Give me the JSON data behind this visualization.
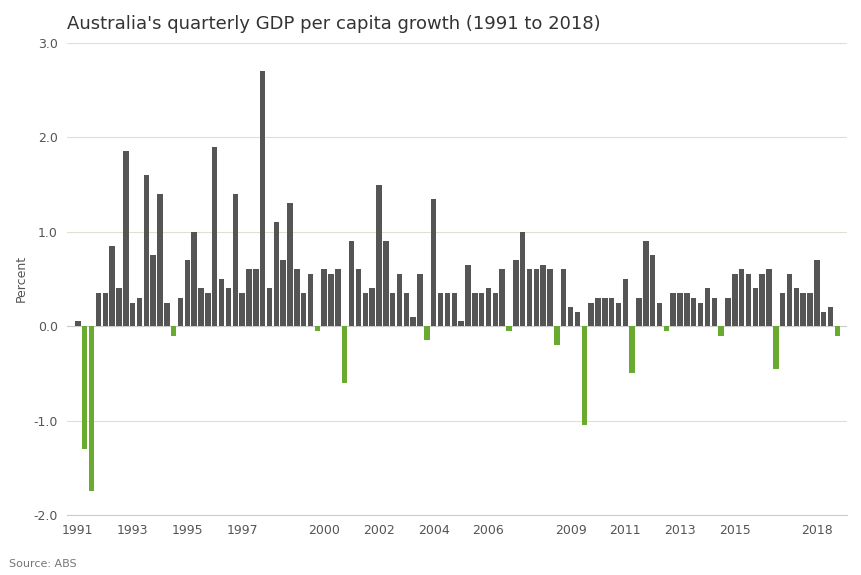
{
  "title": "Australia's quarterly GDP per capita growth (1991 to 2018)",
  "ylabel": "Percent",
  "source": "Source: ABS",
  "background_color": "#ffffff",
  "plot_background": "#ffffff",
  "bar_color_positive": "#555555",
  "bar_color_negative": "#6aaa30",
  "ylim": [
    -2.0,
    3.0
  ],
  "yticks": [
    -2.0,
    -1.0,
    0.0,
    1.0,
    2.0,
    3.0
  ],
  "xtick_labels": [
    "1991",
    "1993",
    "1995",
    "1997",
    "2000",
    "2002",
    "2004",
    "2006",
    "2009",
    "2011",
    "2013",
    "2015",
    "2018"
  ],
  "xtick_years": [
    1991,
    1993,
    1995,
    1997,
    2000,
    2002,
    2004,
    2006,
    2009,
    2011,
    2013,
    2015,
    2018
  ],
  "start_year": 1991,
  "values": [
    0.05,
    -1.3,
    -1.75,
    0.35,
    0.35,
    0.85,
    0.4,
    1.85,
    0.25,
    0.3,
    1.6,
    0.75,
    1.4,
    0.25,
    -0.1,
    0.3,
    0.7,
    1.0,
    0.4,
    0.35,
    1.9,
    0.5,
    0.4,
    1.4,
    0.35,
    0.6,
    0.6,
    2.7,
    0.4,
    1.1,
    0.7,
    1.3,
    0.6,
    0.35,
    0.55,
    -0.05,
    0.6,
    0.55,
    0.6,
    -0.6,
    0.9,
    0.6,
    0.35,
    0.4,
    1.5,
    0.9,
    0.35,
    0.55,
    0.35,
    0.1,
    0.55,
    -0.15,
    1.35,
    0.35,
    0.35,
    0.35,
    0.05,
    0.65,
    0.35,
    0.35,
    0.4,
    0.35,
    0.6,
    -0.05,
    0.7,
    1.0,
    0.6,
    0.6,
    0.65,
    0.6,
    -0.2,
    0.6,
    0.2,
    0.15,
    -1.05,
    0.25,
    0.3,
    0.3,
    0.3,
    0.25,
    0.5,
    -0.5,
    0.3,
    0.9,
    0.75,
    0.25,
    -0.05,
    0.35,
    0.35,
    0.35,
    0.3,
    0.25,
    0.4,
    0.3,
    -0.1,
    0.3,
    0.55,
    0.6,
    0.55,
    0.4,
    0.55,
    0.6,
    -0.45,
    0.35,
    0.55,
    0.4,
    0.35,
    0.35,
    0.7,
    0.15,
    0.2,
    -0.1
  ],
  "grid_color": "#e0e0d0",
  "spine_color": "#cccccc",
  "tick_color": "#555555",
  "title_fontsize": 13,
  "tick_fontsize": 9,
  "ylabel_fontsize": 9,
  "source_fontsize": 8
}
